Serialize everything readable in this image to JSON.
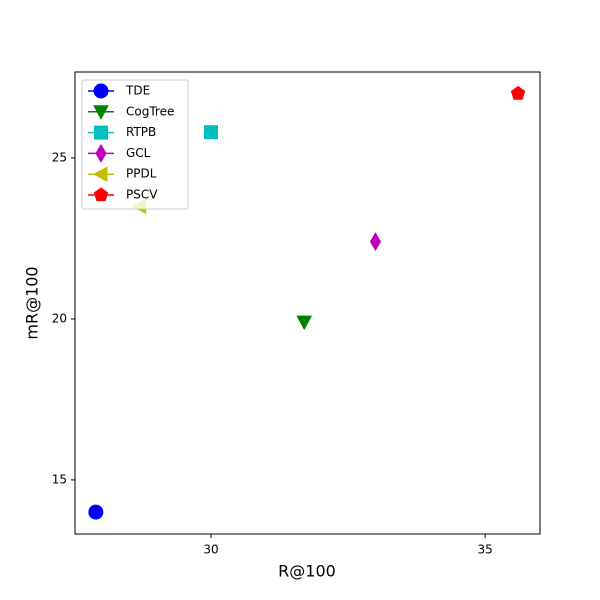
{
  "chart_data": {
    "type": "scatter",
    "xlabel": "R@100",
    "ylabel": "mR@100",
    "xlim": [
      27.52,
      36.0
    ],
    "ylim": [
      13.32,
      27.67
    ],
    "xticks": [
      30,
      35
    ],
    "yticks": [
      15,
      20,
      25
    ],
    "legend": "upper left",
    "series": [
      {
        "name": "TDE",
        "color": "#0000ff",
        "marker": "circle",
        "x": [
          27.9
        ],
        "values": [
          14.0
        ]
      },
      {
        "name": "CogTree",
        "color": "#008000",
        "marker": "triangle-down",
        "x": [
          31.7
        ],
        "values": [
          19.9
        ]
      },
      {
        "name": "RTPB",
        "color": "#00bfbf",
        "marker": "square",
        "x": [
          30.0
        ],
        "values": [
          25.8
        ]
      },
      {
        "name": "GCL",
        "color": "#bf00bf",
        "marker": "thin-diamond",
        "x": [
          33.0
        ],
        "values": [
          22.4
        ]
      },
      {
        "name": "PPDL",
        "color": "#bfbf00",
        "marker": "triangle-left",
        "x": [
          28.7
        ],
        "values": [
          23.5
        ]
      },
      {
        "name": "PSCV",
        "color": "#ff0000",
        "marker": "pentagon",
        "x": [
          35.6
        ],
        "values": [
          27.0
        ]
      }
    ]
  }
}
